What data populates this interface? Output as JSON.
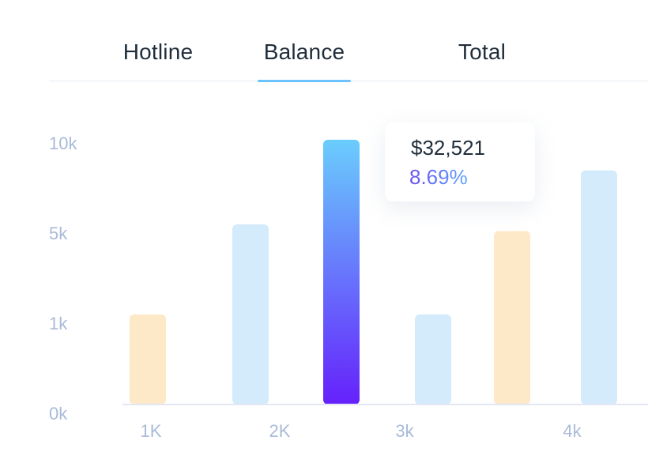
{
  "tabs": {
    "items": [
      {
        "label": "Hotline"
      },
      {
        "label": "Balance"
      },
      {
        "label": "Total"
      }
    ],
    "active_index": 1
  },
  "tooltip": {
    "amount": "$32,521",
    "percent": "8.69%"
  },
  "colors": {
    "orange_bar": "#fde8c7",
    "blue_bar": "#d4ebfb",
    "highlight_top": "#6acdfd",
    "highlight_bottom": "#6521fb",
    "axis_text": "#a9bad8",
    "baseline": "#e4e7f3",
    "tab_underline": "#6cc3fb"
  },
  "chart_data": {
    "type": "bar",
    "title": "",
    "xlabel": "",
    "ylabel": "",
    "y_tick_labels": [
      "0k",
      "1k",
      "5k",
      "10k"
    ],
    "x_tick_labels": [
      "1K",
      "2K",
      "3k",
      "4k"
    ],
    "bars": [
      {
        "value": 1000,
        "color": "orange"
      },
      {
        "value": 5000,
        "color": "blue"
      },
      {
        "value": 9700,
        "color": "gradient",
        "highlighted": true
      },
      {
        "value": 1000,
        "color": "blue"
      },
      {
        "value": 4700,
        "color": "orange"
      },
      {
        "value": 8000,
        "color": "blue"
      }
    ],
    "y_axis_scale": "piecewise: 0k,1k,5k,10k equally spaced",
    "grid": false
  }
}
